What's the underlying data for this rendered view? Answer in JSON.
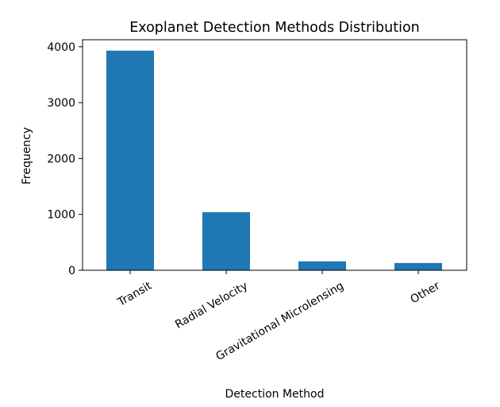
{
  "chart_data": {
    "type": "bar",
    "title": "Exoplanet Detection Methods Distribution",
    "xlabel": "Detection Method",
    "ylabel": "Frequency",
    "categories": [
      "Transit",
      "Radial Velocity",
      "Gravitational Microlensing",
      "Other"
    ],
    "values": [
      3930,
      1040,
      160,
      130
    ],
    "ylim": [
      0,
      4125
    ],
    "yticks": [
      0,
      1000,
      2000,
      3000,
      4000
    ],
    "color": "#1f77b4",
    "grid": false,
    "legend": "none",
    "xtick_rotation": -30
  }
}
